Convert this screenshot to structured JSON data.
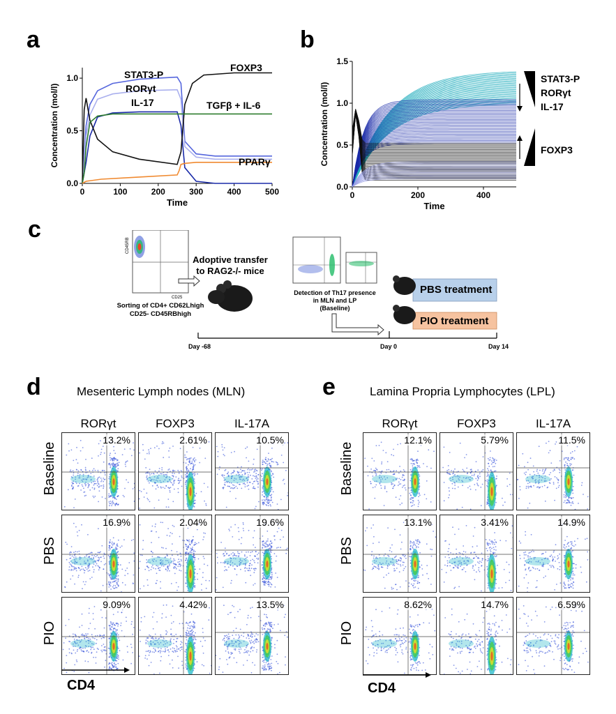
{
  "panel_letters": {
    "a": "a",
    "b": "b",
    "c": "c",
    "d": "d",
    "e": "e"
  },
  "chart_data": [
    {
      "id": "a",
      "type": "line",
      "xlabel": "Time",
      "ylabel": "Concentration (mol/l)",
      "xlim": [
        0,
        500
      ],
      "ylim": [
        0,
        1.1
      ],
      "xticks": [
        "0",
        "100",
        "200",
        "300",
        "400",
        "500"
      ],
      "yticks": [
        "0.0",
        "0.5",
        "1.0"
      ],
      "series": [
        {
          "name": "STAT3-P",
          "color": "#5566dd",
          "x": [
            0,
            10,
            20,
            40,
            80,
            150,
            250,
            260,
            270,
            300,
            350,
            500
          ],
          "y": [
            0,
            0.55,
            0.75,
            0.88,
            0.95,
            0.99,
            1.01,
            0.95,
            0.4,
            0.28,
            0.26,
            0.26
          ]
        },
        {
          "name": "RORγt",
          "color": "#aab0ee",
          "x": [
            0,
            10,
            20,
            40,
            80,
            150,
            250,
            260,
            270,
            300,
            350,
            500
          ],
          "y": [
            0,
            0.45,
            0.65,
            0.8,
            0.85,
            0.88,
            0.89,
            0.8,
            0.35,
            0.25,
            0.23,
            0.23
          ]
        },
        {
          "name": "IL-17",
          "color": "#1a2aa8",
          "x": [
            0,
            10,
            20,
            40,
            80,
            150,
            250,
            260,
            270,
            300,
            350,
            500
          ],
          "y": [
            0,
            0.2,
            0.45,
            0.63,
            0.67,
            0.68,
            0.68,
            0.55,
            0.15,
            0.02,
            0.0,
            0.0
          ]
        },
        {
          "name": "FOXP3",
          "color": "#111111",
          "x": [
            0,
            5,
            10,
            20,
            40,
            80,
            150,
            250,
            260,
            270,
            290,
            320,
            400,
            500
          ],
          "y": [
            0,
            0.7,
            0.81,
            0.6,
            0.42,
            0.3,
            0.23,
            0.18,
            0.3,
            0.75,
            0.95,
            1.03,
            1.05,
            1.05
          ]
        },
        {
          "name": "TGFβ + IL-6",
          "color": "#2e7d2e",
          "x": [
            0,
            5,
            10,
            20,
            40,
            80,
            150,
            300,
            500
          ],
          "y": [
            0,
            0.1,
            0.35,
            0.58,
            0.64,
            0.66,
            0.66,
            0.66,
            0.66
          ]
        },
        {
          "name": "PPARγ",
          "color": "#f08a30",
          "x": [
            0,
            10,
            50,
            150,
            250,
            255,
            260,
            270,
            300,
            500
          ],
          "y": [
            0,
            0.02,
            0.04,
            0.06,
            0.08,
            0.12,
            0.18,
            0.19,
            0.2,
            0.2
          ]
        }
      ]
    },
    {
      "id": "b",
      "type": "line",
      "xlabel": "Time",
      "ylabel": "Concentration (mol/l)",
      "xlim": [
        0,
        500
      ],
      "ylim": [
        0,
        1.5
      ],
      "xticks": [
        "0",
        "200",
        "400"
      ],
      "yticks": [
        "0.0",
        "0.5",
        "1.0",
        "1.5"
      ],
      "families": [
        {
          "name": "STAT3-P",
          "color": "#2ab0c0",
          "count": 30,
          "final_range": [
            1.0,
            1.39
          ]
        },
        {
          "name": "IL-17",
          "color": "#1a2aa8",
          "count": 30,
          "final_range": [
            0.52,
            1.04
          ]
        },
        {
          "name": "FOXP3",
          "color": "#111111",
          "count": 30,
          "final_range": [
            0.08,
            0.52
          ]
        },
        {
          "name": "RORγt",
          "color": "#9aa0e6",
          "count": 12,
          "final_range": [
            0.1,
            0.3
          ]
        }
      ],
      "annotations": {
        "top_labels": [
          "STAT3-P",
          "RORγt",
          "IL-17"
        ],
        "bottom_label": "FOXP3"
      }
    }
  ],
  "panel_c": {
    "sort_axis_y": "CD45RB",
    "sort_axis_x": "CD25",
    "sort_caption_1": "Sorting of CD4+ CD62Lhigh",
    "sort_caption_2": "CD25- CD45RBhigh",
    "transfer_1": "Adoptive transfer",
    "transfer_2": "to RAG2-/- mice",
    "detect_1": "Detection of Th17 presence",
    "detect_2": "in MLN and LP",
    "detect_3": "(Baseline)",
    "pbs": "PBS treatment",
    "pio": "PIO treatment",
    "day_start": "Day -68",
    "day_zero": "Day 0",
    "day_end": "Day 14",
    "colors": {
      "pbs": "#b8d0ea",
      "pio": "#f6c3a0"
    }
  },
  "panel_d": {
    "title": "Mesenteric Lymph nodes (MLN)",
    "columns": [
      "RORγt",
      "FOXP3",
      "IL-17A"
    ],
    "rows": [
      {
        "label": "Baseline",
        "values": [
          "13.2%",
          "2.61%",
          "10.5%"
        ]
      },
      {
        "label": "PBS",
        "values": [
          "16.9%",
          "2.04%",
          "19.6%"
        ]
      },
      {
        "label": "PIO",
        "values": [
          "9.09%",
          "4.42%",
          "13.5%"
        ]
      }
    ],
    "axis": "CD4"
  },
  "panel_e": {
    "title": "Lamina Propria Lymphocytes (LPL)",
    "columns": [
      "RORγt",
      "FOXP3",
      "IL-17A"
    ],
    "rows": [
      {
        "label": "Baseline",
        "values": [
          "12.1%",
          "5.79%",
          "11.5%"
        ]
      },
      {
        "label": "PBS",
        "values": [
          "13.1%",
          "3.41%",
          "14.9%"
        ]
      },
      {
        "label": "PIO",
        "values": [
          "8.62%",
          "14.7%",
          "6.59%"
        ]
      }
    ],
    "axis": "CD4"
  }
}
